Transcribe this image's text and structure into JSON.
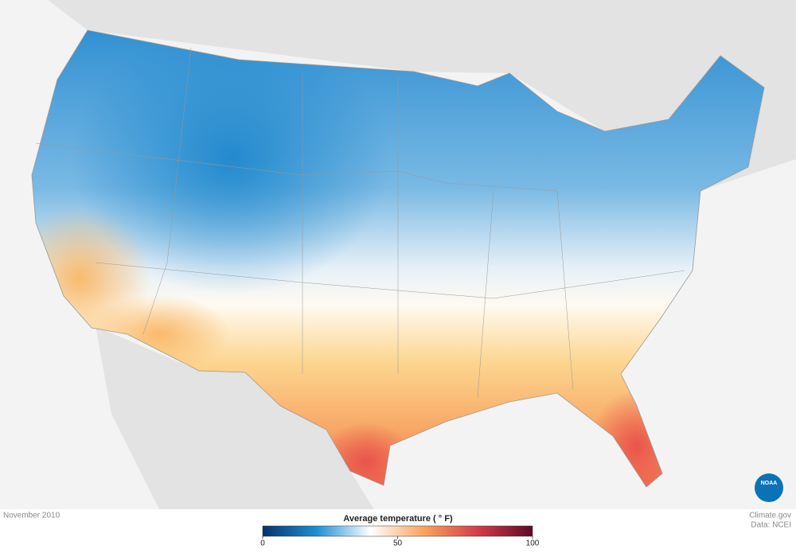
{
  "date": "November 2010",
  "credit": "Climate.gov",
  "source": "Data: NCEI",
  "logo": "NOAA",
  "legend": {
    "title": "Average temperature ( ° F)",
    "range": [
      0,
      100
    ],
    "ticks": [
      0,
      50,
      100
    ],
    "colors": [
      "#08306b",
      "#1f8fd0",
      "#ffffff",
      "#f7a35c",
      "#d33a4a",
      "#5c0a26"
    ]
  }
}
